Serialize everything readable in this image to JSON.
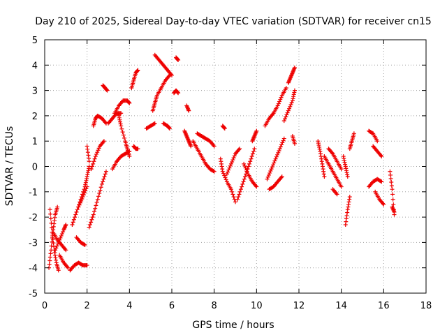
{
  "chart_data": {
    "type": "scatter",
    "title": "Day 210 of 2025, Sidereal Day-to-day VTEC variation (SDTVAR) for receiver cn15",
    "xlabel": "GPS time / hours",
    "ylabel": "SDTVAR / TECUs",
    "xlim": [
      0,
      18
    ],
    "ylim": [
      -5,
      5
    ],
    "xticks": [
      "0",
      "2",
      "4",
      "6",
      "8",
      "10",
      "12",
      "14",
      "16",
      "18"
    ],
    "yticks": [
      "-5",
      "-4",
      "-3",
      "-2",
      "-1",
      "0",
      "1",
      "2",
      "3",
      "4",
      "5"
    ],
    "grid": true,
    "marker": "+",
    "color": "#ee0000",
    "series": [
      {
        "name": "SDTVAR",
        "tracks": [
          {
            "x": [
              0.25,
              0.35,
              0.45,
              0.55,
              0.65
            ],
            "y": [
              -1.7,
              -2.6,
              -3.3,
              -3.8,
              -4.1
            ]
          },
          {
            "x": [
              0.2,
              0.3,
              0.4,
              0.5,
              0.6
            ],
            "y": [
              -4.0,
              -3.3,
              -2.5,
              -1.9,
              -1.6
            ]
          },
          {
            "x": [
              0.5,
              0.7,
              0.9,
              1.0
            ],
            "y": [
              -3.3,
              -2.9,
              -2.5,
              -2.3
            ]
          },
          {
            "x": [
              0.4,
              0.6,
              0.8,
              1.0
            ],
            "y": [
              -2.6,
              -2.9,
              -3.1,
              -3.3
            ]
          },
          {
            "x": [
              0.7,
              0.9,
              1.1
            ],
            "y": [
              -3.5,
              -3.8,
              -4.0
            ]
          },
          {
            "x": [
              1.2,
              1.4,
              1.6,
              1.8,
              2.0
            ],
            "y": [
              -4.1,
              -3.9,
              -3.8,
              -3.9,
              -3.9
            ]
          },
          {
            "x": [
              1.3,
              1.5,
              1.7,
              1.9,
              2.0,
              2.1
            ],
            "y": [
              -2.3,
              -1.8,
              -1.3,
              -0.8,
              -0.4,
              0.0
            ]
          },
          {
            "x": [
              1.5,
              1.7,
              1.9
            ],
            "y": [
              -2.8,
              -3.0,
              -3.1
            ]
          },
          {
            "x": [
              1.6,
              1.8,
              2.0
            ],
            "y": [
              -1.6,
              -1.2,
              -0.8
            ]
          },
          {
            "x": [
              2.1,
              2.3,
              2.5,
              2.7,
              2.9
            ],
            "y": [
              -2.4,
              -1.9,
              -1.3,
              -0.7,
              -0.2
            ]
          },
          {
            "x": [
              2.2,
              2.4,
              2.6,
              2.8
            ],
            "y": [
              -0.1,
              0.4,
              0.8,
              1.0
            ]
          },
          {
            "x": [
              2.0,
              2.1
            ],
            "y": [
              0.8,
              0.2
            ]
          },
          {
            "x": [
              2.3,
              2.4,
              2.5,
              2.7,
              2.9
            ],
            "y": [
              1.6,
              1.9,
              2.0,
              1.9,
              1.7
            ]
          },
          {
            "x": [
              2.75,
              2.85,
              2.95
            ],
            "y": [
              3.2,
              3.1,
              3.0
            ]
          },
          {
            "x": [
              3.2,
              3.4,
              3.6,
              3.8,
              4.0
            ],
            "y": [
              -0.1,
              0.2,
              0.4,
              0.5,
              0.6
            ]
          },
          {
            "x": [
              3.3,
              3.5,
              3.7,
              3.9,
              4.0
            ],
            "y": [
              2.1,
              2.4,
              2.6,
              2.6,
              2.5
            ]
          },
          {
            "x": [
              3.5,
              3.6,
              3.8,
              3.9,
              4.0
            ],
            "y": [
              2.0,
              1.6,
              1.0,
              0.7,
              0.4
            ]
          },
          {
            "x": [
              3.0,
              3.2,
              3.4,
              3.6
            ],
            "y": [
              1.7,
              1.9,
              2.1,
              2.1
            ]
          },
          {
            "x": [
              4.1,
              4.2,
              4.3,
              4.4
            ],
            "y": [
              3.1,
              3.4,
              3.7,
              3.8
            ]
          },
          {
            "x": [
              4.2,
              4.3,
              4.4
            ],
            "y": [
              0.8,
              0.7,
              0.7
            ]
          },
          {
            "x": [
              4.8,
              5.0,
              5.2
            ],
            "y": [
              1.5,
              1.6,
              1.7
            ]
          },
          {
            "x": [
              5.1,
              5.2,
              5.3,
              5.5,
              5.7,
              5.9
            ],
            "y": [
              2.2,
              2.5,
              2.8,
              3.1,
              3.4,
              3.6
            ]
          },
          {
            "x": [
              5.2,
              5.4,
              5.6,
              5.8,
              6.0
            ],
            "y": [
              4.4,
              4.2,
              4.0,
              3.8,
              3.6
            ]
          },
          {
            "x": [
              5.6,
              5.8,
              5.9
            ],
            "y": [
              1.7,
              1.6,
              1.5
            ]
          },
          {
            "x": [
              6.1,
              6.2,
              6.3
            ],
            "y": [
              2.9,
              3.0,
              2.9
            ]
          },
          {
            "x": [
              6.2,
              6.3
            ],
            "y": [
              4.3,
              4.2
            ]
          },
          {
            "x": [
              6.6,
              6.7,
              6.8,
              6.9
            ],
            "y": [
              1.4,
              1.2,
              1.0,
              0.8
            ]
          },
          {
            "x": [
              6.7,
              6.8
            ],
            "y": [
              2.4,
              2.2
            ]
          },
          {
            "x": [
              7.0,
              7.2,
              7.4,
              7.6,
              7.8,
              8.0
            ],
            "y": [
              1.0,
              0.7,
              0.4,
              0.1,
              -0.1,
              -0.2
            ]
          },
          {
            "x": [
              7.2,
              7.4,
              7.6,
              7.8,
              8.0
            ],
            "y": [
              1.3,
              1.2,
              1.1,
              1.0,
              0.8
            ]
          },
          {
            "x": [
              8.3,
              8.4,
              8.6,
              8.8,
              9.0
            ],
            "y": [
              0.3,
              -0.2,
              -0.6,
              -0.9,
              -1.4
            ]
          },
          {
            "x": [
              8.4,
              8.5
            ],
            "y": [
              1.6,
              1.5
            ]
          },
          {
            "x": [
              8.6,
              8.8,
              9.0,
              9.2
            ],
            "y": [
              -0.3,
              0.1,
              0.5,
              0.7
            ]
          },
          {
            "x": [
              9.1,
              9.3,
              9.5,
              9.7,
              9.9
            ],
            "y": [
              -1.3,
              -0.8,
              -0.3,
              0.2,
              0.7
            ]
          },
          {
            "x": [
              9.4,
              9.6,
              9.8,
              10.0
            ],
            "y": [
              0.1,
              -0.3,
              -0.6,
              -0.8
            ]
          },
          {
            "x": [
              9.8,
              9.9,
              10.0
            ],
            "y": [
              1.0,
              1.2,
              1.4
            ]
          },
          {
            "x": [
              10.4,
              10.6,
              10.8,
              11.0,
              11.2,
              11.4
            ],
            "y": [
              1.6,
              1.9,
              2.1,
              2.4,
              2.8,
              3.1
            ]
          },
          {
            "x": [
              10.5,
              10.7,
              10.9,
              11.1,
              11.3
            ],
            "y": [
              -0.5,
              -0.1,
              0.3,
              0.7,
              1.1
            ]
          },
          {
            "x": [
              10.6,
              10.8,
              11.0,
              11.2
            ],
            "y": [
              -0.9,
              -0.8,
              -0.6,
              -0.4
            ]
          },
          {
            "x": [
              11.3,
              11.5,
              11.7,
              11.8
            ],
            "y": [
              1.8,
              2.2,
              2.6,
              3.0
            ]
          },
          {
            "x": [
              11.5,
              11.6,
              11.7,
              11.8
            ],
            "y": [
              3.3,
              3.5,
              3.7,
              3.9
            ]
          },
          {
            "x": [
              11.7,
              11.8
            ],
            "y": [
              1.2,
              0.9
            ]
          },
          {
            "x": [
              12.9,
              13.0,
              13.1,
              13.2
            ],
            "y": [
              1.0,
              0.6,
              0.1,
              -0.4
            ]
          },
          {
            "x": [
              13.2,
              13.4,
              13.6,
              13.8,
              14.0
            ],
            "y": [
              0.4,
              0.1,
              -0.2,
              -0.5,
              -0.8
            ]
          },
          {
            "x": [
              13.4,
              13.6,
              13.8,
              14.0
            ],
            "y": [
              0.7,
              0.5,
              0.2,
              -0.1
            ]
          },
          {
            "x": [
              13.6,
              13.8
            ],
            "y": [
              -0.9,
              -1.1
            ]
          },
          {
            "x": [
              14.1,
              14.2,
              14.3
            ],
            "y": [
              0.4,
              0.0,
              -0.4
            ]
          },
          {
            "x": [
              14.2,
              14.3,
              14.4
            ],
            "y": [
              -2.3,
              -1.7,
              -1.2
            ]
          },
          {
            "x": [
              14.4,
              14.5,
              14.6
            ],
            "y": [
              0.7,
              1.0,
              1.3
            ]
          },
          {
            "x": [
              15.3,
              15.5,
              15.7
            ],
            "y": [
              1.4,
              1.3,
              1.0
            ]
          },
          {
            "x": [
              15.5,
              15.7,
              15.9
            ],
            "y": [
              0.8,
              0.6,
              0.4
            ]
          },
          {
            "x": [
              15.3,
              15.5,
              15.7,
              15.9
            ],
            "y": [
              -0.8,
              -0.6,
              -0.5,
              -0.6
            ]
          },
          {
            "x": [
              15.6,
              15.8,
              16.0
            ],
            "y": [
              -1.0,
              -1.3,
              -1.5
            ]
          },
          {
            "x": [
              16.3,
              16.4,
              16.5
            ],
            "y": [
              -0.2,
              -0.9,
              -1.9
            ]
          },
          {
            "x": [
              16.4,
              16.5
            ],
            "y": [
              -1.6,
              -1.8
            ]
          }
        ]
      }
    ]
  }
}
